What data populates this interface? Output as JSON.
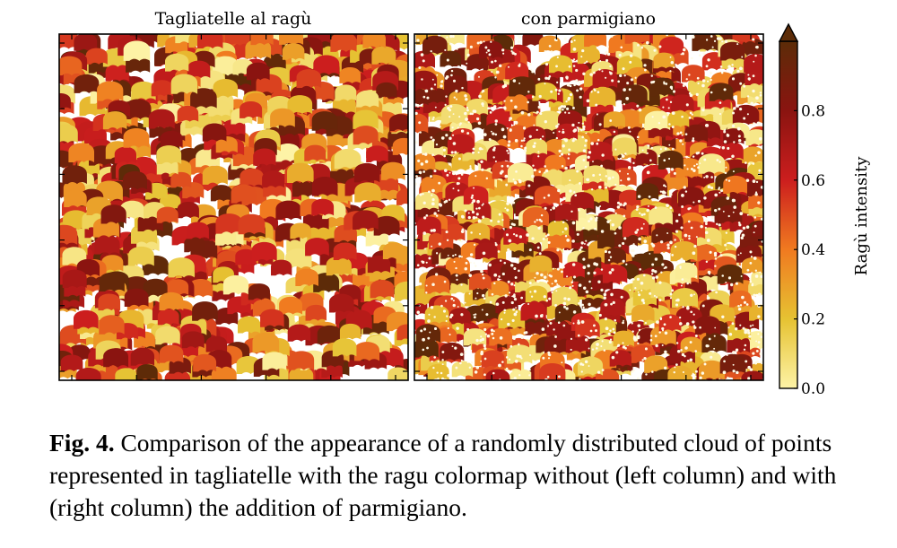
{
  "chart_data": [
    {
      "type": "scatter",
      "title": "Tagliatelle al ragù",
      "xlabel": "",
      "ylabel": "",
      "grid": false,
      "marker": "tagliatelle blob",
      "point_count": 900,
      "color_range": [
        0.0,
        1.0
      ],
      "parmigiano": false
    },
    {
      "type": "scatter",
      "title": "con parmigiano",
      "xlabel": "",
      "ylabel": "",
      "grid": false,
      "marker": "tagliatelle blob with parmigiano specks",
      "point_count": 900,
      "color_range": [
        0.0,
        1.0
      ],
      "parmigiano": true
    }
  ],
  "colorbar": {
    "label": "Ragù intensity",
    "range": [
      0.0,
      1.0
    ],
    "extend": "max",
    "ticks": [
      "0.0",
      "0.2",
      "0.4",
      "0.6",
      "0.8"
    ],
    "tick_values": [
      0.0,
      0.2,
      0.4,
      0.6,
      0.8
    ],
    "colors": [
      "#fdf3a6",
      "#e6c232",
      "#f07a20",
      "#cc1e1e",
      "#8a1410",
      "#5c2c08"
    ]
  },
  "caption": {
    "label": "Fig. 4.",
    "text": "Comparison of the appearance of a randomly distributed cloud of points represented in tagliatelle with the ragu colormap without (left column) and with (right column) the addition of parmigiano."
  }
}
